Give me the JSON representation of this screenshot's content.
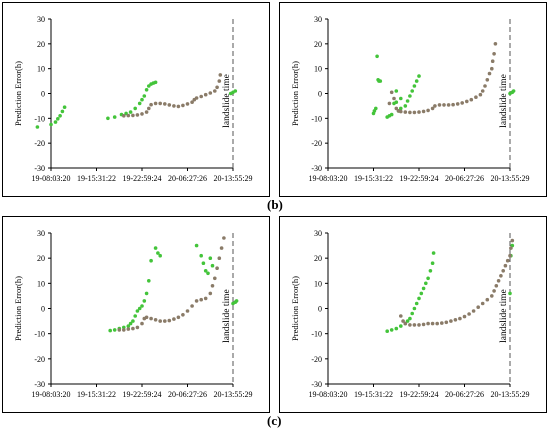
{
  "captions": {
    "b": "(b)",
    "c": "(c)"
  },
  "colors": {
    "green": "#43c43a",
    "brown": "#8a7b68",
    "axis": "#000000",
    "marker_line": "#555555"
  },
  "common": {
    "ylabel": "Prediction Error(h)",
    "ylim": [
      -30,
      30
    ],
    "yticks": [
      "30",
      "20",
      "10",
      "0",
      "-10",
      "-20",
      "-30"
    ],
    "xticks": [
      "19-08:03:20",
      "19-15:31:22",
      "19-22:59:24",
      "20-06:27:26",
      "20-13:55:29"
    ],
    "marker_label": "landslide time"
  },
  "chart_data": [
    {
      "type": "scatter",
      "series": [
        {
          "color": "green",
          "points": [
            [
              -0.3,
              -13.5
            ],
            [
              0.0,
              -12.5
            ],
            [
              0.1,
              -11.5
            ],
            [
              0.15,
              -10.2
            ],
            [
              0.2,
              -9
            ],
            [
              0.25,
              -7.2
            ],
            [
              0.3,
              -5.5
            ],
            [
              1.25,
              -10
            ],
            [
              1.4,
              -9.5
            ],
            [
              1.55,
              -8.5
            ],
            [
              1.65,
              -8
            ],
            [
              1.75,
              -7.5
            ],
            [
              1.85,
              -6
            ],
            [
              1.95,
              -4
            ],
            [
              2.0,
              -2.5
            ],
            [
              2.05,
              -1
            ],
            [
              2.1,
              1.5
            ],
            [
              2.15,
              3
            ],
            [
              2.2,
              3.8
            ],
            [
              2.25,
              4.2
            ],
            [
              2.3,
              4.5
            ],
            [
              3.95,
              0
            ],
            [
              4.0,
              0.5
            ],
            [
              4.05,
              1
            ]
          ]
        },
        {
          "color": "brown",
          "points": [
            [
              1.6,
              -9
            ],
            [
              1.7,
              -8.9
            ],
            [
              1.8,
              -8.8
            ],
            [
              1.9,
              -8.6
            ],
            [
              2.0,
              -8.2
            ],
            [
              2.1,
              -7.5
            ],
            [
              2.15,
              -6
            ],
            [
              2.2,
              -4.5
            ],
            [
              2.3,
              -4
            ],
            [
              2.4,
              -4
            ],
            [
              2.5,
              -4.2
            ],
            [
              2.6,
              -4.6
            ],
            [
              2.7,
              -5
            ],
            [
              2.8,
              -5.2
            ],
            [
              2.9,
              -4.8
            ],
            [
              3.0,
              -4.2
            ],
            [
              3.1,
              -3.5
            ],
            [
              3.15,
              -2.5
            ],
            [
              3.2,
              -1.8
            ],
            [
              3.3,
              -1.2
            ],
            [
              3.4,
              -0.5
            ],
            [
              3.5,
              0.2
            ],
            [
              3.6,
              1
            ],
            [
              3.65,
              2.5
            ],
            [
              3.7,
              5
            ],
            [
              3.72,
              7.5
            ]
          ]
        }
      ]
    },
    {
      "type": "scatter",
      "series": [
        {
          "color": "green",
          "points": [
            [
              1.0,
              -8
            ],
            [
              1.02,
              -7
            ],
            [
              1.05,
              -6
            ],
            [
              1.08,
              15
            ],
            [
              1.1,
              5.5
            ],
            [
              1.12,
              5
            ],
            [
              1.15,
              5
            ],
            [
              1.3,
              -9.5
            ],
            [
              1.35,
              -9
            ],
            [
              1.4,
              -8.5
            ],
            [
              1.45,
              -4
            ],
            [
              1.5,
              -3.5
            ],
            [
              1.55,
              -7
            ],
            [
              1.6,
              -6
            ],
            [
              1.7,
              -5
            ],
            [
              1.75,
              -3
            ],
            [
              1.8,
              -1
            ],
            [
              1.85,
              1
            ],
            [
              1.9,
              3
            ],
            [
              1.95,
              5
            ],
            [
              2.0,
              7
            ],
            [
              1.5,
              1
            ],
            [
              1.6,
              -2
            ],
            [
              4.0,
              0
            ],
            [
              4.05,
              0.5
            ],
            [
              4.08,
              1
            ]
          ]
        },
        {
          "color": "brown",
          "points": [
            [
              1.35,
              -4
            ],
            [
              1.4,
              0.5
            ],
            [
              1.45,
              -2
            ],
            [
              1.5,
              -6
            ],
            [
              1.55,
              -7
            ],
            [
              1.6,
              -7.3
            ],
            [
              1.7,
              -7.5
            ],
            [
              1.8,
              -7.6
            ],
            [
              1.9,
              -7.6
            ],
            [
              2.0,
              -7.5
            ],
            [
              2.1,
              -7.2
            ],
            [
              2.2,
              -6.8
            ],
            [
              2.3,
              -6
            ],
            [
              2.35,
              -5
            ],
            [
              2.45,
              -4.6
            ],
            [
              2.55,
              -4.6
            ],
            [
              2.65,
              -4.6
            ],
            [
              2.75,
              -4.5
            ],
            [
              2.85,
              -4.2
            ],
            [
              2.95,
              -3.8
            ],
            [
              3.05,
              -3.2
            ],
            [
              3.15,
              -2.5
            ],
            [
              3.25,
              -1.5
            ],
            [
              3.35,
              -0.5
            ],
            [
              3.4,
              1
            ],
            [
              3.45,
              3
            ],
            [
              3.5,
              5.5
            ],
            [
              3.55,
              8
            ],
            [
              3.6,
              10
            ],
            [
              3.62,
              13
            ],
            [
              3.65,
              16
            ],
            [
              3.68,
              20
            ]
          ]
        }
      ]
    },
    {
      "type": "scatter",
      "series": [
        {
          "color": "green",
          "points": [
            [
              1.3,
              -8.8
            ],
            [
              1.4,
              -8.5
            ],
            [
              1.5,
              -8
            ],
            [
              1.6,
              -7.5
            ],
            [
              1.7,
              -7
            ],
            [
              1.75,
              -6
            ],
            [
              1.8,
              -5
            ],
            [
              1.85,
              -3
            ],
            [
              1.9,
              -1
            ],
            [
              1.95,
              0
            ],
            [
              2.0,
              1
            ],
            [
              2.05,
              3
            ],
            [
              2.1,
              6
            ],
            [
              2.15,
              11
            ],
            [
              2.2,
              19
            ],
            [
              2.3,
              24
            ],
            [
              2.35,
              22
            ],
            [
              2.4,
              21
            ],
            [
              3.2,
              25
            ],
            [
              3.3,
              21
            ],
            [
              3.35,
              18
            ],
            [
              3.4,
              15
            ],
            [
              3.45,
              14
            ],
            [
              3.5,
              20
            ],
            [
              3.55,
              17
            ],
            [
              4.0,
              2
            ],
            [
              4.05,
              2.5
            ],
            [
              4.08,
              3
            ]
          ]
        },
        {
          "color": "brown",
          "points": [
            [
              1.5,
              -8.5
            ],
            [
              1.6,
              -8.5
            ],
            [
              1.7,
              -8.2
            ],
            [
              1.8,
              -8
            ],
            [
              1.9,
              -7.5
            ],
            [
              2.0,
              -6
            ],
            [
              2.05,
              -4
            ],
            [
              2.1,
              -3.5
            ],
            [
              2.2,
              -4
            ],
            [
              2.3,
              -4.5
            ],
            [
              2.4,
              -5
            ],
            [
              2.5,
              -5
            ],
            [
              2.6,
              -4.8
            ],
            [
              2.7,
              -4.2
            ],
            [
              2.8,
              -3.5
            ],
            [
              2.9,
              -2.5
            ],
            [
              3.0,
              -1
            ],
            [
              3.1,
              1
            ],
            [
              3.2,
              3
            ],
            [
              3.3,
              3.5
            ],
            [
              3.4,
              4
            ],
            [
              3.5,
              6
            ],
            [
              3.55,
              9
            ],
            [
              3.6,
              12
            ],
            [
              3.65,
              16
            ],
            [
              3.7,
              20
            ],
            [
              3.75,
              24
            ],
            [
              3.8,
              28
            ]
          ]
        }
      ]
    },
    {
      "type": "scatter",
      "series": [
        {
          "color": "green",
          "points": [
            [
              1.3,
              -9
            ],
            [
              1.4,
              -8.5
            ],
            [
              1.5,
              -8
            ],
            [
              1.6,
              -7
            ],
            [
              1.7,
              -6
            ],
            [
              1.75,
              -5
            ],
            [
              1.8,
              -4
            ],
            [
              1.85,
              -2
            ],
            [
              1.9,
              0
            ],
            [
              1.95,
              2
            ],
            [
              2.0,
              4
            ],
            [
              2.05,
              6
            ],
            [
              2.1,
              8
            ],
            [
              2.15,
              10
            ],
            [
              2.2,
              12
            ],
            [
              2.25,
              15
            ],
            [
              2.3,
              18
            ],
            [
              2.32,
              22
            ],
            [
              4.0,
              6
            ],
            [
              4.02,
              21
            ],
            [
              4.05,
              25
            ]
          ]
        },
        {
          "color": "brown",
          "points": [
            [
              1.6,
              -3
            ],
            [
              1.65,
              -5
            ],
            [
              1.7,
              -6
            ],
            [
              1.8,
              -6.5
            ],
            [
              1.9,
              -6.5
            ],
            [
              2.0,
              -6.5
            ],
            [
              2.1,
              -6.3
            ],
            [
              2.2,
              -6
            ],
            [
              2.3,
              -6
            ],
            [
              2.4,
              -6
            ],
            [
              2.5,
              -5.8
            ],
            [
              2.6,
              -5.5
            ],
            [
              2.7,
              -5
            ],
            [
              2.8,
              -4.5
            ],
            [
              2.9,
              -4
            ],
            [
              3.0,
              -3.2
            ],
            [
              3.1,
              -2.2
            ],
            [
              3.2,
              -1
            ],
            [
              3.3,
              0.5
            ],
            [
              3.4,
              2
            ],
            [
              3.5,
              3.5
            ],
            [
              3.6,
              5
            ],
            [
              3.65,
              7
            ],
            [
              3.7,
              9
            ],
            [
              3.75,
              11
            ],
            [
              3.8,
              13
            ],
            [
              3.85,
              15
            ],
            [
              3.9,
              17
            ],
            [
              3.95,
              19
            ],
            [
              4.0,
              21
            ],
            [
              4.02,
              24
            ],
            [
              4.05,
              27
            ]
          ]
        }
      ]
    }
  ]
}
